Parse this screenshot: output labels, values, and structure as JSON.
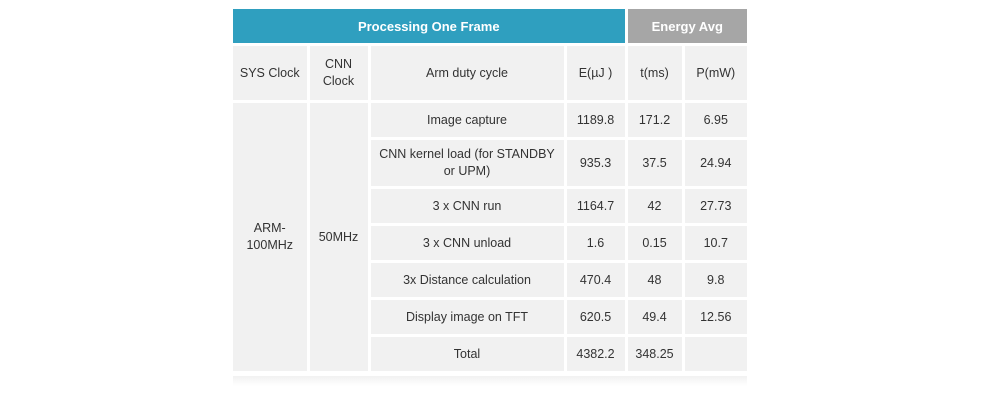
{
  "header": {
    "processing_label": "Processing One Frame",
    "energy_label": "Energy Avg"
  },
  "columns": {
    "sys_clock": "SYS Clock",
    "cnn_clock": "CNN\nClock",
    "arm_duty": "Arm duty cycle",
    "energy": "E(µJ )",
    "time": "t(ms)",
    "power": "P(mW)"
  },
  "group": {
    "sys_clock": "ARM-\n100MHz",
    "cnn_clock": "50MHz"
  },
  "rows": [
    {
      "task": "Image capture",
      "e": "1189.8",
      "t": "171.2",
      "p": "6.95"
    },
    {
      "task": "CNN kernel load (for STANDBY\nor UPM)",
      "e": "935.3",
      "t": "37.5",
      "p": "24.94"
    },
    {
      "task": "3 x CNN run",
      "e": "1164.7",
      "t": "42",
      "p": "27.73"
    },
    {
      "task": "3 x CNN unload",
      "e": "1.6",
      "t": "0.15",
      "p": "10.7"
    },
    {
      "task": "3x Distance calculation",
      "e": "470.4",
      "t": "48",
      "p": "9.8"
    },
    {
      "task": "Display image on TFT",
      "e": "620.5",
      "t": "49.4",
      "p": "12.56"
    },
    {
      "task": "Total",
      "e": "4382.2",
      "t": "348.25",
      "p": ""
    }
  ]
}
